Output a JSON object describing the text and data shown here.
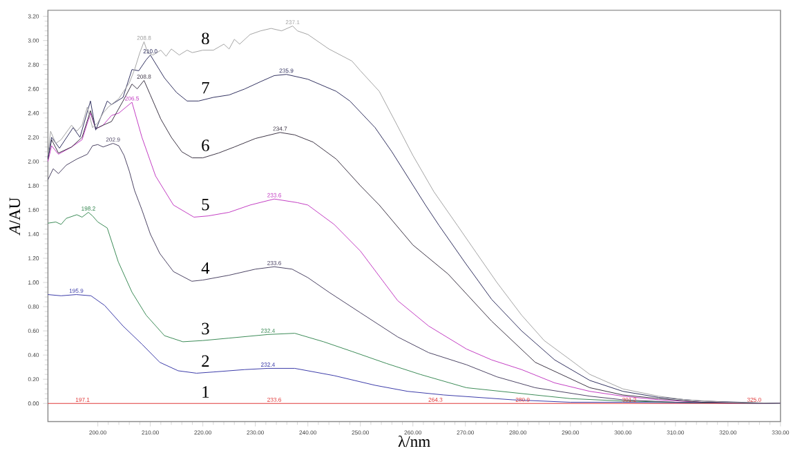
{
  "chart_data": {
    "type": "line",
    "xlabel": "λ/nm",
    "ylabel": "*A*/AU",
    "xlim": [
      190.5,
      330
    ],
    "ylim": [
      -0.15,
      3.25
    ],
    "xticks": [
      {
        "value": 200,
        "label": "200.00"
      },
      {
        "value": 210,
        "label": "210.00"
      },
      {
        "value": 220,
        "label": "220.00"
      },
      {
        "value": 230,
        "label": "230.00"
      },
      {
        "value": 240,
        "label": "240.00"
      },
      {
        "value": 250,
        "label": "250.00"
      },
      {
        "value": 260,
        "label": "260.00"
      },
      {
        "value": 270,
        "label": "270.00"
      },
      {
        "value": 280,
        "label": "280.00"
      },
      {
        "value": 290,
        "label": "290.00"
      },
      {
        "value": 300,
        "label": "300.00"
      },
      {
        "value": 310,
        "label": "310.00"
      },
      {
        "value": 320,
        "label": "320.00"
      },
      {
        "value": 330,
        "label": "330.00"
      }
    ],
    "yticks": [
      {
        "value": 0,
        "label": "0.00"
      },
      {
        "value": 0.2,
        "label": "0.20"
      },
      {
        "value": 0.4,
        "label": "0.40"
      },
      {
        "value": 0.6,
        "label": "0.60"
      },
      {
        "value": 0.8,
        "label": "0.80"
      },
      {
        "value": 1,
        "label": "1.00"
      },
      {
        "value": 1.2,
        "label": "1.20"
      },
      {
        "value": 1.4,
        "label": "1.40"
      },
      {
        "value": 1.6,
        "label": "1.60"
      },
      {
        "value": 1.8,
        "label": "1.80"
      },
      {
        "value": 2,
        "label": "2.00"
      },
      {
        "value": 2.2,
        "label": "2.20"
      },
      {
        "value": 2.4,
        "label": "2.40"
      },
      {
        "value": 2.6,
        "label": "2.60"
      },
      {
        "value": 2.8,
        "label": "2.80"
      },
      {
        "value": 3,
        "label": "3.00"
      },
      {
        "value": 3.2,
        "label": "3.20"
      }
    ],
    "grid": false,
    "marker": "none",
    "line_style": "solid",
    "series": [
      {
        "name": "1",
        "color": "#e03535",
        "x": [
          190.5,
          200,
          250,
          300,
          330
        ],
        "values": [
          0,
          0,
          0,
          0,
          0
        ]
      },
      {
        "name": "2",
        "color": "#3a3aa8",
        "x": [
          190.5,
          193,
          195.9,
          198.7,
          201.3,
          204.8,
          208.4,
          211.8,
          215.3,
          218.8,
          222,
          228,
          232.4,
          237.5,
          245,
          252.8,
          259,
          265.9,
          279,
          290,
          300,
          330
        ],
        "values": [
          0.9,
          0.89,
          0.9,
          0.89,
          0.81,
          0.64,
          0.49,
          0.34,
          0.27,
          0.25,
          0.26,
          0.28,
          0.29,
          0.29,
          0.23,
          0.15,
          0.1,
          0.07,
          0.03,
          0.01,
          0.01,
          0
        ]
      },
      {
        "name": "3",
        "color": "#3a8a55",
        "x": [
          190.5,
          192,
          193,
          194,
          196,
          197,
          198.2,
          199,
          200,
          201.8,
          203.9,
          206.5,
          209.2,
          212.7,
          216.2,
          220,
          225,
          232.4,
          237.5,
          243,
          248.4,
          255,
          261.4,
          270.2,
          283.3,
          290,
          300,
          310,
          330
        ],
        "values": [
          1.49,
          1.5,
          1.48,
          1.53,
          1.56,
          1.54,
          1.58,
          1.55,
          1.5,
          1.45,
          1.17,
          0.92,
          0.73,
          0.56,
          0.51,
          0.52,
          0.54,
          0.57,
          0.58,
          0.51,
          0.43,
          0.33,
          0.24,
          0.13,
          0.07,
          0.04,
          0.02,
          0.01,
          0
        ]
      },
      {
        "name": "4",
        "color": "#4a4262",
        "x": [
          190.5,
          191.5,
          192.5,
          194,
          196,
          198,
          199,
          200,
          201,
          202.9,
          204,
          205,
          206,
          207,
          208.4,
          210,
          211.8,
          214.4,
          217.9,
          220,
          225,
          230,
          233.6,
          237,
          240,
          244,
          250,
          257.1,
          263,
          270.2,
          276,
          283.3,
          293.7,
          300,
          310,
          330
        ],
        "values": [
          1.85,
          1.94,
          1.9,
          1.97,
          2.02,
          2.06,
          2.13,
          2.14,
          2.12,
          2.15,
          2.13,
          2.05,
          1.92,
          1.76,
          1.6,
          1.4,
          1.24,
          1.09,
          1.01,
          1.02,
          1.06,
          1.11,
          1.13,
          1.11,
          1.04,
          0.92,
          0.75,
          0.55,
          0.42,
          0.32,
          0.22,
          0.13,
          0.06,
          0.03,
          0.01,
          0
        ]
      },
      {
        "name": "5",
        "color": "#c23cc2",
        "x": [
          190.5,
          191.2,
          192.5,
          195,
          197,
          198.6,
          199.6,
          201,
          202.6,
          204,
          206.5,
          208.4,
          211,
          214.4,
          218.3,
          221,
          225,
          229,
          233.6,
          238,
          240,
          245,
          250,
          257.1,
          263,
          270.2,
          275,
          280.7,
          287,
          293.7,
          300,
          306.8,
          315,
          330
        ],
        "values": [
          2,
          2.13,
          2.06,
          2.12,
          2.18,
          2.4,
          2.27,
          2.3,
          2.38,
          2.4,
          2.49,
          2.2,
          1.88,
          1.64,
          1.54,
          1.55,
          1.58,
          1.64,
          1.69,
          1.66,
          1.64,
          1.48,
          1.26,
          0.85,
          0.64,
          0.45,
          0.36,
          0.28,
          0.17,
          0.1,
          0.06,
          0.03,
          0.01,
          0
        ]
      },
      {
        "name": "6",
        "color": "#3c3444",
        "x": [
          190.5,
          191.2,
          192.5,
          195,
          197,
          198.6,
          199.6,
          201,
          202.6,
          204.8,
          206.5,
          207.5,
          208.8,
          210,
          212,
          214,
          216,
          218,
          220,
          223,
          226,
          230,
          234.7,
          237.5,
          241,
          245.4,
          250,
          253.6,
          260,
          266.7,
          275,
          283.3,
          293.7,
          300,
          306.8,
          315,
          330
        ],
        "values": [
          2.02,
          2.18,
          2.07,
          2.12,
          2.2,
          2.42,
          2.27,
          2.3,
          2.33,
          2.5,
          2.64,
          2.6,
          2.67,
          2.55,
          2.35,
          2.2,
          2.08,
          2.03,
          2.03,
          2.07,
          2.12,
          2.19,
          2.24,
          2.22,
          2.16,
          2.02,
          1.8,
          1.64,
          1.31,
          1.07,
          0.68,
          0.34,
          0.13,
          0.07,
          0.04,
          0.01,
          0
        ]
      },
      {
        "name": "7",
        "color": "#30305e",
        "x": [
          190.5,
          191.2,
          192.7,
          195.3,
          196.6,
          198.6,
          199.6,
          201.8,
          202.6,
          204.8,
          206.5,
          207.8,
          209.2,
          210,
          212.7,
          215,
          217,
          219.2,
          222,
          225,
          228,
          231,
          233.6,
          235.9,
          240,
          245.4,
          248,
          252.8,
          256,
          262.4,
          265,
          270,
          275,
          280.7,
          287,
          293.7,
          300,
          306.8,
          315,
          330
        ],
        "values": [
          2.03,
          2.2,
          2.11,
          2.28,
          2.2,
          2.5,
          2.26,
          2.5,
          2.47,
          2.53,
          2.76,
          2.75,
          2.84,
          2.88,
          2.69,
          2.57,
          2.5,
          2.5,
          2.53,
          2.55,
          2.6,
          2.66,
          2.71,
          2.72,
          2.68,
          2.58,
          2.5,
          2.28,
          2.08,
          1.64,
          1.47,
          1.16,
          0.86,
          0.6,
          0.36,
          0.19,
          0.1,
          0.05,
          0.02,
          0
        ]
      },
      {
        "name": "8",
        "color": "#a3a3a3",
        "x": [
          190.5,
          191,
          192,
          193,
          195,
          196,
          197,
          198,
          199,
          200,
          201,
          202,
          204,
          206,
          207,
          208,
          208.8,
          209.5,
          210.5,
          212,
          213,
          214,
          215.5,
          217,
          218,
          220,
          222,
          224,
          225,
          226,
          227,
          229,
          231,
          233,
          235,
          237.1,
          238,
          240,
          244,
          248.4,
          250,
          253.6,
          257,
          260,
          264,
          268.5,
          272,
          276,
          280.7,
          285,
          290,
          293.7,
          300,
          306.8,
          312,
          320,
          330
        ],
        "values": [
          2.05,
          2.25,
          2.15,
          2.18,
          2.3,
          2.25,
          2.3,
          2.45,
          2.28,
          2.32,
          2.4,
          2.45,
          2.52,
          2.65,
          2.76,
          2.9,
          2.99,
          2.9,
          2.88,
          2.92,
          2.87,
          2.93,
          2.88,
          2.92,
          2.9,
          2.92,
          2.92,
          2.97,
          2.93,
          3.01,
          2.97,
          3.05,
          3.08,
          3.1,
          3.08,
          3.12,
          3.08,
          3.05,
          2.93,
          2.83,
          2.75,
          2.58,
          2.3,
          2.05,
          1.75,
          1.47,
          1.25,
          1,
          0.73,
          0.52,
          0.36,
          0.24,
          0.12,
          0.06,
          0.03,
          0.01,
          0
        ]
      }
    ],
    "annotations": [
      {
        "text": "197.1",
        "x": 197.1,
        "y": 0
      },
      {
        "text": "233.6",
        "x": 233.6,
        "y": 0
      },
      {
        "text": "264.3",
        "x": 264.3,
        "y": 0
      },
      {
        "text": "280.9",
        "x": 280.9,
        "y": 0
      },
      {
        "text": "301.2",
        "x": 301.2,
        "y": 0
      },
      {
        "text": "325.0",
        "x": 325,
        "y": 0
      },
      {
        "text": "195.9",
        "x": 195.9,
        "y": 0.9
      },
      {
        "text": "232.4",
        "x": 232.4,
        "y": 0.29
      },
      {
        "text": "198.2",
        "x": 198.2,
        "y": 1.58
      },
      {
        "text": "232.4",
        "x": 232.4,
        "y": 0.57
      },
      {
        "text": "202.9",
        "x": 202.9,
        "y": 2.15
      },
      {
        "text": "233.6",
        "x": 233.6,
        "y": 1.13
      },
      {
        "text": "206.5",
        "x": 206.5,
        "y": 2.49
      },
      {
        "text": "233.6",
        "x": 233.6,
        "y": 1.69
      },
      {
        "text": "208.8",
        "x": 208.8,
        "y": 2.67
      },
      {
        "text": "234.7",
        "x": 234.7,
        "y": 2.24
      },
      {
        "text": "210.0",
        "x": 210,
        "y": 2.88
      },
      {
        "text": "235.9",
        "x": 235.9,
        "y": 2.72
      },
      {
        "text": "208.8",
        "x": 208.8,
        "y": 2.99
      },
      {
        "text": "237.1",
        "x": 237.1,
        "y": 3.12
      }
    ]
  }
}
